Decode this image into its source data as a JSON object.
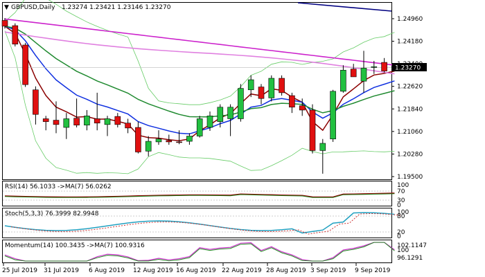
{
  "header": {
    "symbol": "GBPUSD,Daily",
    "ohlc": "1.23274 1.23421 1.23146 1.23270"
  },
  "colors": {
    "bull": "#22c040",
    "bear": "#e01010",
    "ema_short": "#8b0000",
    "ma_blue": "#1030e0",
    "ma_green": "#208a30",
    "ma_magenta": "#cc22cc",
    "ma_pink": "#e080e0",
    "ma_navy": "#000080",
    "bands": "#66cc66",
    "rsi": "#8b0000",
    "rsi_ma": "#228b22",
    "stoch_main": "#20a0c0",
    "stoch_signal": "#cc3333",
    "momentum": "#cc33cc",
    "momentum_ma": "#228b22"
  },
  "price_axis": {
    "ticks": [
      "1.24960",
      "1.24180",
      "1.23400",
      "1.22620",
      "1.21840",
      "1.21060",
      "1.20280",
      "1.19500"
    ],
    "current": "1.23270"
  },
  "x_axis": {
    "labels": [
      "25 Jul 2019",
      "31 Jul 2019",
      "6 Aug 2019",
      "12 Aug 2019",
      "16 Aug 2019",
      "22 Aug 2019",
      "28 Aug 2019",
      "3 Sep 2019",
      "9 Sep 2019"
    ]
  },
  "rsi_panel": {
    "title": "RSI(14) 56.1033  ->MA(7) 56.0262",
    "levels": [
      "100",
      "70",
      "30",
      "0"
    ]
  },
  "stoch_panel": {
    "title": "Stoch(5,3,3) 76.3999 82.9948",
    "levels": [
      "100",
      "80",
      "20",
      "0"
    ]
  },
  "momentum_panel": {
    "title": "Momentum(14) 100.3435  ->MA(7) 100.9316",
    "levels": [
      "102.1147",
      "100",
      "96.1291"
    ]
  },
  "chart_data": {
    "type": "candlestick",
    "candles": [
      {
        "o": 1.249,
        "h": 1.2498,
        "l": 1.2462,
        "c": 1.247
      },
      {
        "o": 1.2472,
        "h": 1.248,
        "l": 1.24,
        "c": 1.2408
      },
      {
        "o": 1.2405,
        "h": 1.2412,
        "l": 1.226,
        "c": 1.2268
      },
      {
        "o": 1.225,
        "h": 1.2262,
        "l": 1.213,
        "c": 1.2165
      },
      {
        "o": 1.215,
        "h": 1.216,
        "l": 1.211,
        "c": 1.214
      },
      {
        "o": 1.2145,
        "h": 1.221,
        "l": 1.21,
        "c": 1.213
      },
      {
        "o": 1.212,
        "h": 1.217,
        "l": 1.208,
        "c": 1.215
      },
      {
        "o": 1.2152,
        "h": 1.222,
        "l": 1.212,
        "c": 1.2128
      },
      {
        "o": 1.2128,
        "h": 1.218,
        "l": 1.211,
        "c": 1.216
      },
      {
        "o": 1.215,
        "h": 1.224,
        "l": 1.211,
        "c": 1.2135
      },
      {
        "o": 1.213,
        "h": 1.216,
        "l": 1.209,
        "c": 1.215
      },
      {
        "o": 1.2158,
        "h": 1.217,
        "l": 1.212,
        "c": 1.213
      },
      {
        "o": 1.2135,
        "h": 1.215,
        "l": 1.21,
        "c": 1.2118
      },
      {
        "o": 1.212,
        "h": 1.214,
        "l": 1.203,
        "c": 1.2035
      },
      {
        "o": 1.2038,
        "h": 1.209,
        "l": 1.202,
        "c": 1.2072
      },
      {
        "o": 1.207,
        "h": 1.211,
        "l": 1.206,
        "c": 1.208
      },
      {
        "o": 1.2075,
        "h": 1.2095,
        "l": 1.206,
        "c": 1.207
      },
      {
        "o": 1.207,
        "h": 1.211,
        "l": 1.2062,
        "c": 1.2068
      },
      {
        "o": 1.2072,
        "h": 1.21,
        "l": 1.206,
        "c": 1.209
      },
      {
        "o": 1.209,
        "h": 1.216,
        "l": 1.2085,
        "c": 1.215
      },
      {
        "o": 1.212,
        "h": 1.2175,
        "l": 1.2108,
        "c": 1.216
      },
      {
        "o": 1.214,
        "h": 1.22,
        "l": 1.212,
        "c": 1.219
      },
      {
        "o": 1.215,
        "h": 1.22,
        "l": 1.209,
        "c": 1.219
      },
      {
        "o": 1.215,
        "h": 1.227,
        "l": 1.214,
        "c": 1.2255
      },
      {
        "o": 1.225,
        "h": 1.23,
        "l": 1.2225,
        "c": 1.2285
      },
      {
        "o": 1.226,
        "h": 1.227,
        "l": 1.22,
        "c": 1.222
      },
      {
        "o": 1.2222,
        "h": 1.23,
        "l": 1.221,
        "c": 1.229
      },
      {
        "o": 1.229,
        "h": 1.23,
        "l": 1.223,
        "c": 1.224
      },
      {
        "o": 1.223,
        "h": 1.224,
        "l": 1.217,
        "c": 1.219
      },
      {
        "o": 1.2195,
        "h": 1.222,
        "l": 1.216,
        "c": 1.218
      },
      {
        "o": 1.218,
        "h": 1.22,
        "l": 1.203,
        "c": 1.204
      },
      {
        "o": 1.204,
        "h": 1.208,
        "l": 1.196,
        "c": 1.2065
      },
      {
        "o": 1.208,
        "h": 1.225,
        "l": 1.207,
        "c": 1.2245
      },
      {
        "o": 1.2245,
        "h": 1.2335,
        "l": 1.224,
        "c": 1.2318
      },
      {
        "o": 1.2322,
        "h": 1.234,
        "l": 1.2295,
        "c": 1.2295
      },
      {
        "o": 1.228,
        "h": 1.2385,
        "l": 1.224,
        "c": 1.2325
      },
      {
        "o": 1.233,
        "h": 1.235,
        "l": 1.2305,
        "c": 1.233
      },
      {
        "o": 1.2345,
        "h": 1.236,
        "l": 1.231,
        "c": 1.2315
      },
      {
        "o": 1.2327,
        "h": 1.2342,
        "l": 1.2315,
        "c": 1.2327
      }
    ]
  }
}
